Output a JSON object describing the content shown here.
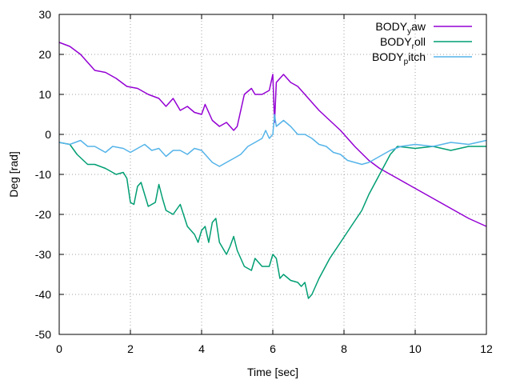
{
  "chart_data": {
    "type": "line",
    "xlabel": "Time [sec]",
    "ylabel": "Deg [rad]",
    "xlim": [
      0,
      12
    ],
    "ylim": [
      -50,
      30
    ],
    "xticks": [
      0,
      2,
      4,
      6,
      8,
      10,
      12
    ],
    "yticks": [
      -50,
      -40,
      -30,
      -20,
      -10,
      0,
      10,
      20,
      30
    ],
    "grid": true,
    "legend_position": "top-right",
    "series": [
      {
        "name": "BODY_yaw",
        "legend_base": "BODY",
        "legend_sub": "y",
        "legend_rest": "aw",
        "color": "#9400d3",
        "points": [
          [
            0,
            23
          ],
          [
            0.3,
            22
          ],
          [
            0.6,
            20
          ],
          [
            0.8,
            18
          ],
          [
            1.0,
            16
          ],
          [
            1.3,
            15.5
          ],
          [
            1.6,
            14
          ],
          [
            1.9,
            12
          ],
          [
            2.2,
            11.5
          ],
          [
            2.5,
            10
          ],
          [
            2.8,
            9
          ],
          [
            3.0,
            7
          ],
          [
            3.2,
            9
          ],
          [
            3.4,
            6
          ],
          [
            3.6,
            7
          ],
          [
            3.8,
            5.5
          ],
          [
            4.0,
            5
          ],
          [
            4.1,
            7.5
          ],
          [
            4.3,
            3.5
          ],
          [
            4.5,
            2
          ],
          [
            4.7,
            3
          ],
          [
            4.9,
            1
          ],
          [
            5.0,
            2
          ],
          [
            5.2,
            10
          ],
          [
            5.4,
            11.5
          ],
          [
            5.5,
            10
          ],
          [
            5.7,
            10
          ],
          [
            5.9,
            11
          ],
          [
            6.0,
            15
          ],
          [
            6.05,
            3
          ],
          [
            6.1,
            13
          ],
          [
            6.3,
            15
          ],
          [
            6.5,
            13
          ],
          [
            6.7,
            12
          ],
          [
            7.0,
            9
          ],
          [
            7.3,
            6
          ],
          [
            7.6,
            3.5
          ],
          [
            7.9,
            1
          ],
          [
            8.3,
            -3
          ],
          [
            8.7,
            -6.5
          ],
          [
            9.0,
            -8.5
          ],
          [
            9.5,
            -11
          ],
          [
            10,
            -13.5
          ],
          [
            10.5,
            -16
          ],
          [
            11,
            -18.5
          ],
          [
            11.5,
            -21
          ],
          [
            12,
            -23
          ]
        ]
      },
      {
        "name": "BODY_roll",
        "legend_base": "BODY",
        "legend_sub": "r",
        "legend_rest": "oll",
        "color": "#009e73",
        "points": [
          [
            0,
            -2
          ],
          [
            0.3,
            -2.5
          ],
          [
            0.5,
            -5
          ],
          [
            0.8,
            -7.5
          ],
          [
            1.0,
            -7.5
          ],
          [
            1.3,
            -8.5
          ],
          [
            1.6,
            -10
          ],
          [
            1.8,
            -9.5
          ],
          [
            1.9,
            -11
          ],
          [
            2.0,
            -17
          ],
          [
            2.1,
            -17.5
          ],
          [
            2.2,
            -13
          ],
          [
            2.3,
            -12
          ],
          [
            2.5,
            -18
          ],
          [
            2.7,
            -17
          ],
          [
            2.8,
            -12.5
          ],
          [
            2.9,
            -16
          ],
          [
            3.0,
            -19
          ],
          [
            3.2,
            -20
          ],
          [
            3.4,
            -17.5
          ],
          [
            3.6,
            -23
          ],
          [
            3.8,
            -25
          ],
          [
            3.9,
            -27
          ],
          [
            4.0,
            -24
          ],
          [
            4.1,
            -23
          ],
          [
            4.2,
            -27
          ],
          [
            4.3,
            -22
          ],
          [
            4.4,
            -21
          ],
          [
            4.5,
            -27
          ],
          [
            4.7,
            -30
          ],
          [
            4.8,
            -28
          ],
          [
            4.9,
            -25.5
          ],
          [
            5.0,
            -29
          ],
          [
            5.2,
            -33
          ],
          [
            5.4,
            -34
          ],
          [
            5.5,
            -31
          ],
          [
            5.7,
            -33
          ],
          [
            5.9,
            -33
          ],
          [
            6.0,
            -30
          ],
          [
            6.1,
            -31
          ],
          [
            6.2,
            -36
          ],
          [
            6.3,
            -35
          ],
          [
            6.5,
            -36.5
          ],
          [
            6.7,
            -37
          ],
          [
            6.8,
            -38
          ],
          [
            6.9,
            -37
          ],
          [
            7.0,
            -41
          ],
          [
            7.1,
            -40
          ],
          [
            7.3,
            -36
          ],
          [
            7.6,
            -31
          ],
          [
            7.9,
            -27
          ],
          [
            8.2,
            -23
          ],
          [
            8.5,
            -19
          ],
          [
            8.7,
            -15
          ],
          [
            9.0,
            -10
          ],
          [
            9.3,
            -5
          ],
          [
            9.5,
            -3
          ],
          [
            10,
            -3.5
          ],
          [
            10.5,
            -3
          ],
          [
            11,
            -4
          ],
          [
            11.5,
            -3
          ],
          [
            12,
            -3
          ]
        ]
      },
      {
        "name": "BODY_pitch",
        "legend_base": "BODY",
        "legend_sub": "p",
        "legend_rest": "itch",
        "color": "#56b4e9",
        "points": [
          [
            0,
            -2
          ],
          [
            0.3,
            -2.5
          ],
          [
            0.6,
            -1.5
          ],
          [
            0.8,
            -3
          ],
          [
            1.0,
            -3
          ],
          [
            1.3,
            -4.5
          ],
          [
            1.5,
            -3
          ],
          [
            1.8,
            -3.5
          ],
          [
            2.0,
            -4.5
          ],
          [
            2.2,
            -3.5
          ],
          [
            2.4,
            -2.5
          ],
          [
            2.6,
            -4
          ],
          [
            2.8,
            -3.5
          ],
          [
            3.0,
            -5.5
          ],
          [
            3.2,
            -4
          ],
          [
            3.4,
            -4
          ],
          [
            3.6,
            -5
          ],
          [
            3.8,
            -3.5
          ],
          [
            4.0,
            -4
          ],
          [
            4.1,
            -5
          ],
          [
            4.3,
            -7
          ],
          [
            4.5,
            -8
          ],
          [
            4.7,
            -7
          ],
          [
            4.9,
            -6
          ],
          [
            5.1,
            -5
          ],
          [
            5.3,
            -3
          ],
          [
            5.5,
            -2
          ],
          [
            5.7,
            -1
          ],
          [
            5.8,
            1
          ],
          [
            5.9,
            -1
          ],
          [
            6.0,
            0
          ],
          [
            6.05,
            5
          ],
          [
            6.1,
            2
          ],
          [
            6.3,
            3.5
          ],
          [
            6.5,
            2
          ],
          [
            6.7,
            0
          ],
          [
            6.9,
            0
          ],
          [
            7.1,
            -1
          ],
          [
            7.3,
            -2.5
          ],
          [
            7.5,
            -3
          ],
          [
            7.7,
            -4.5
          ],
          [
            7.9,
            -5
          ],
          [
            8.1,
            -6.5
          ],
          [
            8.3,
            -7
          ],
          [
            8.5,
            -7.5
          ],
          [
            8.7,
            -7
          ],
          [
            8.9,
            -6
          ],
          [
            9.1,
            -5
          ],
          [
            9.3,
            -4
          ],
          [
            9.6,
            -3
          ],
          [
            10,
            -2.5
          ],
          [
            10.5,
            -3
          ],
          [
            11,
            -2
          ],
          [
            11.5,
            -2.5
          ],
          [
            12,
            -1.5
          ]
        ]
      }
    ]
  }
}
